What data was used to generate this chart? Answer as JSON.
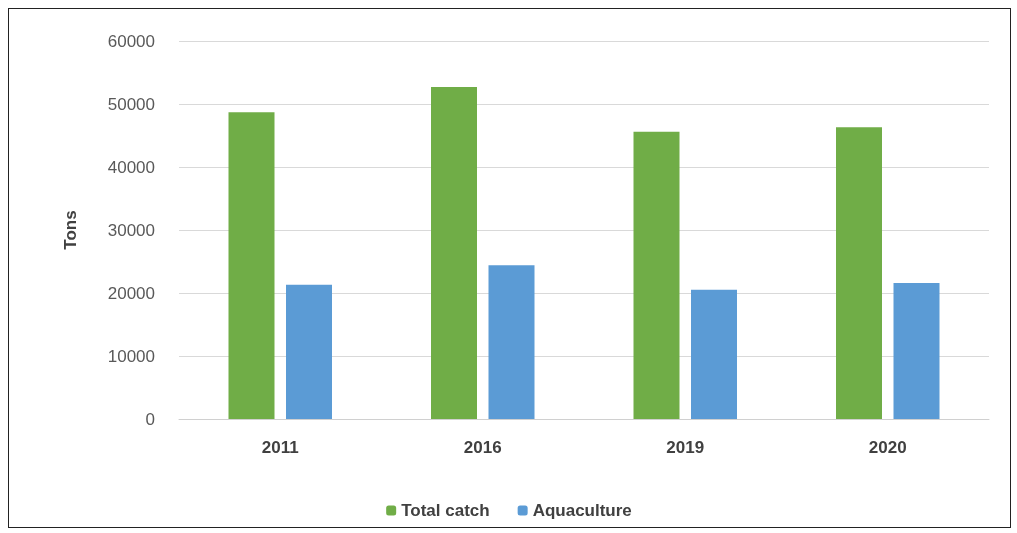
{
  "chart_data": {
    "type": "bar",
    "ylabel": "Tons",
    "categories": [
      "2011",
      "2016",
      "2019",
      "2020"
    ],
    "series": [
      {
        "name": "Total catch",
        "color": "#70ad47",
        "values": [
          48700,
          52700,
          45600,
          46300
        ]
      },
      {
        "name": "Aquaculture",
        "color": "#5b9bd5",
        "values": [
          21300,
          24400,
          20500,
          21600
        ]
      }
    ],
    "ylim": [
      0,
      60000
    ],
    "yticks": [
      0,
      10000,
      20000,
      30000,
      40000,
      50000,
      60000
    ],
    "grid": "y",
    "legend": "bottom"
  }
}
